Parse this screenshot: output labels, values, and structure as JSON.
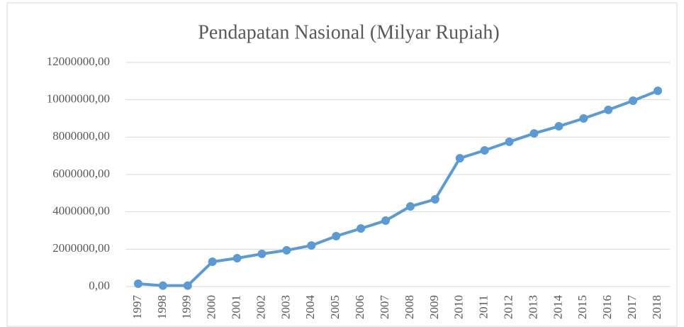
{
  "chart_data": {
    "type": "line",
    "title": "Pendapatan Nasional (Milyar Rupiah)",
    "categories": [
      "1997",
      "1998",
      "1999",
      "2000",
      "2001",
      "2002",
      "2003",
      "2004",
      "2005",
      "2006",
      "2007",
      "2008",
      "2009",
      "2010",
      "2011",
      "2012",
      "2013",
      "2014",
      "2015",
      "2016",
      "2017",
      "2018"
    ],
    "series": [
      {
        "name": "Pendapatan Nasional",
        "color": "#5b9bd5",
        "values": [
          150000,
          50000,
          50000,
          1330000,
          1520000,
          1750000,
          1940000,
          2200000,
          2700000,
          3110000,
          3530000,
          4290000,
          4670000,
          6870000,
          7290000,
          7750000,
          8200000,
          8580000,
          9000000,
          9460000,
          9950000,
          10480000
        ]
      }
    ],
    "ylim": [
      0,
      12000000
    ],
    "yticks": [
      {
        "value": 0,
        "label": "0,00"
      },
      {
        "value": 2000000,
        "label": "2000000,00"
      },
      {
        "value": 4000000,
        "label": "4000000,00"
      },
      {
        "value": 6000000,
        "label": "6000000,00"
      },
      {
        "value": 8000000,
        "label": "8000000,00"
      },
      {
        "value": 10000000,
        "label": "10000000,00"
      },
      {
        "value": 12000000,
        "label": "12000000,00"
      }
    ],
    "grid": true
  }
}
